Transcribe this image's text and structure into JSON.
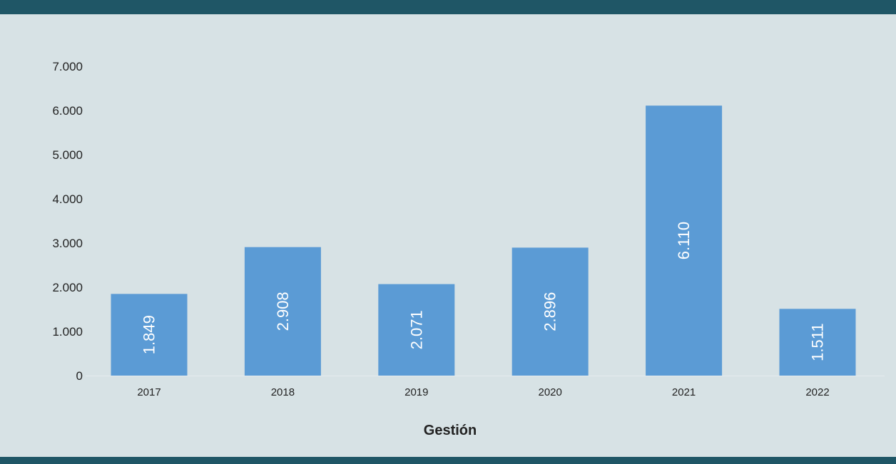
{
  "colors": {
    "background": "#d7e2e5",
    "band": "#1f5666",
    "bar": "#5b9bd5",
    "axis": "#e6ecee",
    "text": "#222222"
  },
  "chart_data": {
    "type": "bar",
    "categories": [
      "2017",
      "2018",
      "2019",
      "2020",
      "2021",
      "2022"
    ],
    "values": [
      1849,
      2908,
      2071,
      2896,
      6110,
      1511
    ],
    "value_labels": [
      "1.849",
      "2.908",
      "2.071",
      "2.896",
      "6.110",
      "1.511"
    ],
    "xlabel": "Gestión",
    "ylabel": "",
    "title": "",
    "ylim": [
      0,
      7000
    ],
    "yticks": [
      0,
      1000,
      2000,
      3000,
      4000,
      5000,
      6000,
      7000
    ],
    "ytick_labels": [
      "0",
      "1.000",
      "2.000",
      "3.000",
      "4.000",
      "5.000",
      "6.000",
      "7.000"
    ],
    "grid": false,
    "legend": "none"
  }
}
